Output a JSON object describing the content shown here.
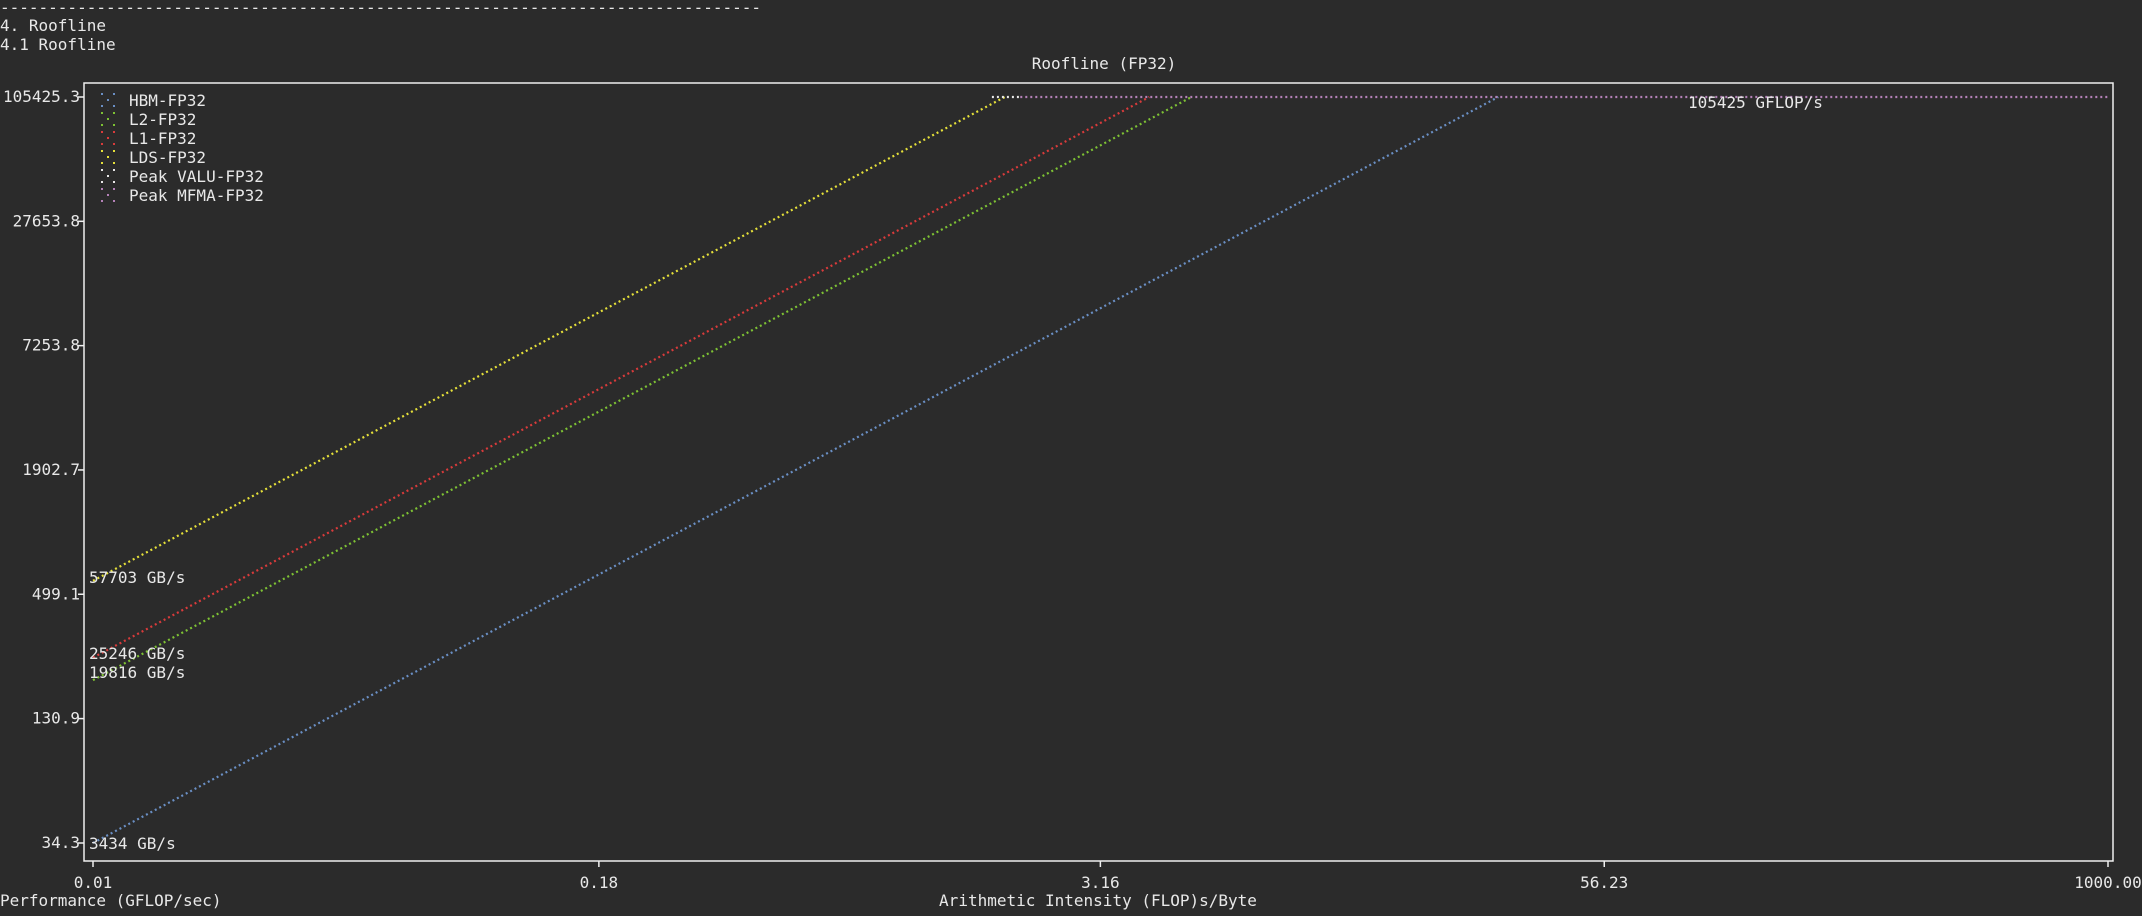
{
  "terminal": {
    "divider": "-------------------------------------------------------------------------------",
    "section": "4. Roofline",
    "subsection": "4.1 Roofline"
  },
  "chart_data": {
    "type": "line",
    "title": "Roofline (FP32)",
    "xlabel": "Arithmetic Intensity (FLOP)s/Byte",
    "ylabel": "Performance (GFLOP/sec)",
    "x_scale": "log",
    "y_scale": "log",
    "xlim": [
      0.01,
      1000
    ],
    "ylim": [
      34.3,
      105425.3
    ],
    "x_ticks": [
      "0.01",
      "0.18",
      "3.16",
      "56.23",
      "1000.00"
    ],
    "y_ticks": [
      "105425.3",
      "27653.8",
      "7253.8",
      "1902.7",
      "499.1",
      "130.9",
      "34.3"
    ],
    "legend_position": "top-left",
    "grid": false,
    "series": [
      {
        "name": "HBM-FP32",
        "color": "#6a8fc4",
        "x": [
          0.01,
          30.7
        ],
        "y": [
          34.3,
          105425
        ]
      },
      {
        "name": "L2-FP32",
        "color": "#7ec234",
        "x": [
          0.01,
          5.32
        ],
        "y": [
          198.16,
          105425
        ]
      },
      {
        "name": "L1-FP32",
        "color": "#d93b3b",
        "x": [
          0.01,
          4.18
        ],
        "y": [
          252.46,
          105425
        ]
      },
      {
        "name": "LDS-FP32",
        "color": "#e5e03a",
        "x": [
          0.01,
          1.83
        ],
        "y": [
          577.03,
          105425
        ]
      },
      {
        "name": "Peak VALU-FP32",
        "color": "#e8e8e8",
        "x": [
          1.7,
          2.0
        ],
        "y": [
          105425,
          105425
        ]
      },
      {
        "name": "Peak MFMA-FP32",
        "color": "#b481b8",
        "x": [
          2.0,
          1000
        ],
        "y": [
          105425,
          105425
        ]
      }
    ],
    "annotations": [
      {
        "text": "57703 GB/s"
      },
      {
        "text": "25246 GB/s"
      },
      {
        "text": "19816 GB/s"
      },
      {
        "text": "3434 GB/s"
      },
      {
        "text": "105425 GFLOP/s"
      }
    ]
  }
}
